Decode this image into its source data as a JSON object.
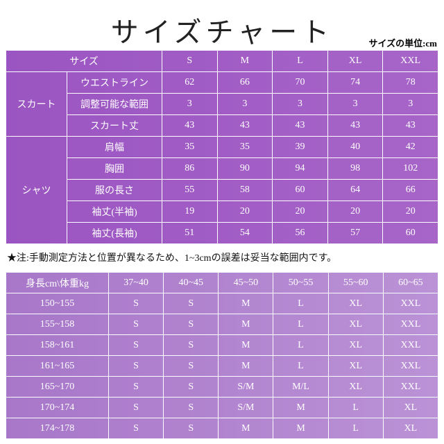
{
  "header": {
    "title": "サイズチャート",
    "unit": "サイズの単位:cm"
  },
  "size_table": {
    "header": [
      "サイズ",
      "S",
      "M",
      "L",
      "XL",
      "XXL"
    ],
    "groups": [
      {
        "name": "スカート",
        "rows": [
          {
            "label": "ウエストライン",
            "values": [
              62,
              66,
              70,
              74,
              78
            ]
          },
          {
            "label": "調整可能な範囲",
            "values": [
              3,
              3,
              3,
              3,
              3
            ]
          },
          {
            "label": "スカート丈",
            "values": [
              43,
              43,
              43,
              43,
              43
            ]
          }
        ]
      },
      {
        "name": "シャツ",
        "rows": [
          {
            "label": "肩幅",
            "values": [
              35,
              35,
              39,
              40,
              42
            ]
          },
          {
            "label": "胸囲",
            "values": [
              86,
              90,
              94,
              98,
              102
            ]
          },
          {
            "label": "服の長さ",
            "values": [
              55,
              58,
              60,
              64,
              66
            ]
          },
          {
            "label": "袖丈(半袖)",
            "values": [
              19,
              20,
              20,
              20,
              20
            ]
          },
          {
            "label": "袖丈(長袖)",
            "values": [
              51,
              54,
              56,
              57,
              60
            ]
          }
        ]
      }
    ]
  },
  "note": "★注:手動測定方法と位置が異なるため、1~3cmの誤差は妥当な範囲内です。",
  "fit_table": {
    "header": [
      "身長cm\\体重kg",
      "37~40",
      "40~45",
      "45~50",
      "50~55",
      "55~60",
      "60~65"
    ],
    "rows": [
      [
        "150~155",
        "S",
        "S",
        "M",
        "L",
        "XL",
        "XXL"
      ],
      [
        "155~158",
        "S",
        "S",
        "M",
        "L",
        "XL",
        "XXL"
      ],
      [
        "158~161",
        "S",
        "S",
        "M",
        "L",
        "XL",
        "XXL"
      ],
      [
        "161~165",
        "S",
        "S",
        "M",
        "L",
        "XL",
        "XXL"
      ],
      [
        "165~170",
        "S",
        "S",
        "S/M",
        "M/L",
        "XL",
        "XXL"
      ],
      [
        "170~174",
        "S",
        "S",
        "S/M",
        "M",
        "L",
        "XL"
      ],
      [
        "174~178",
        "S",
        "S",
        "M",
        "M",
        "L",
        "XL"
      ]
    ]
  }
}
